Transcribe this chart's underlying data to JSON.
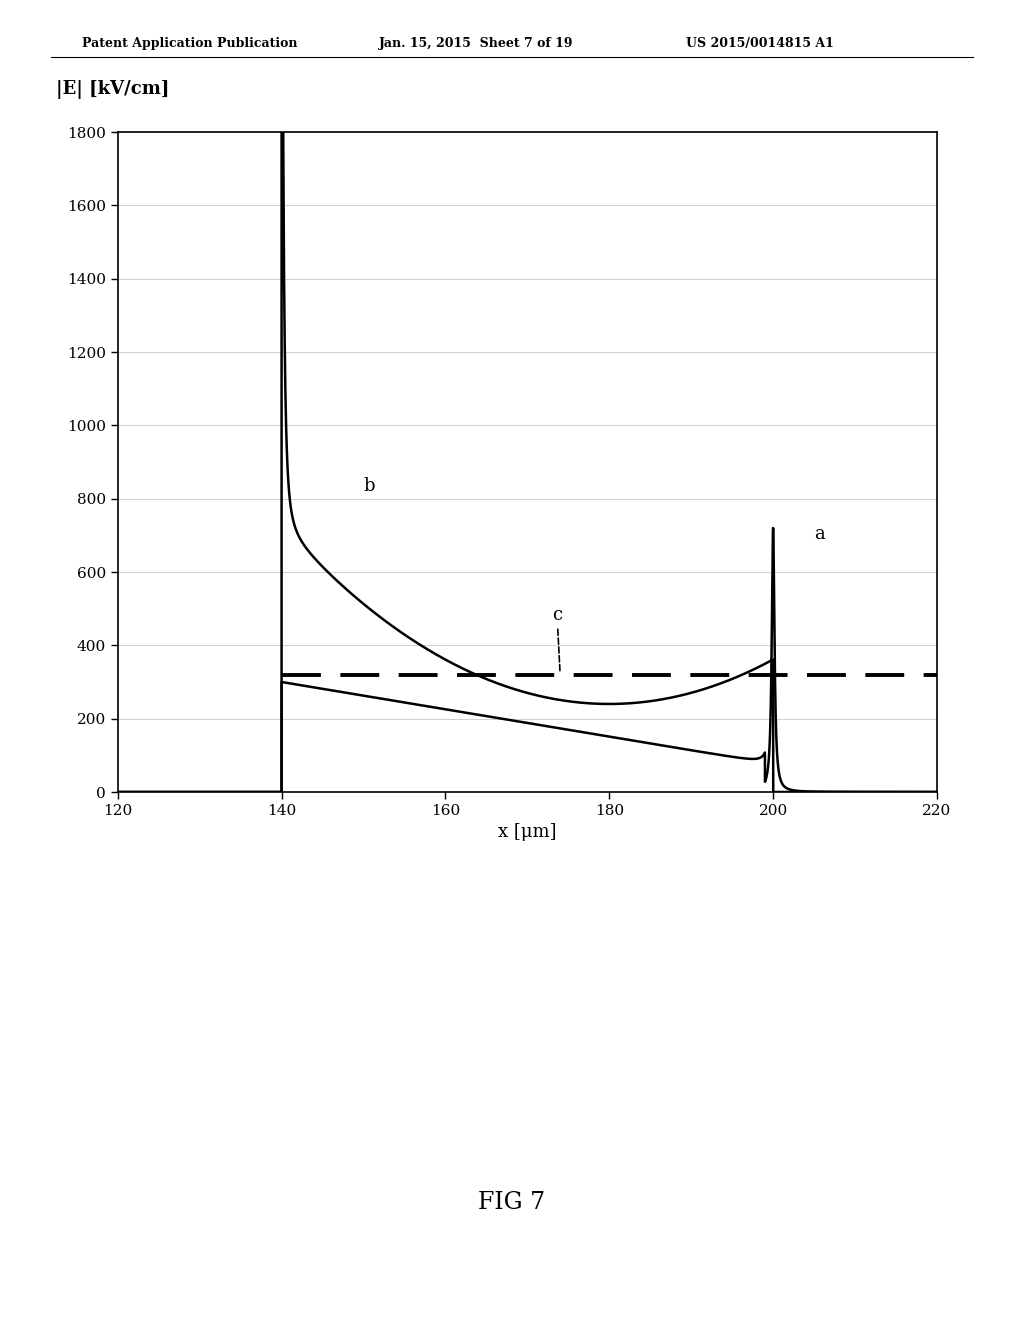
{
  "title": "",
  "ylabel": "|E| [kV/cm]",
  "xlabel": "x [μm]",
  "xlim": [
    120,
    220
  ],
  "ylim": [
    0,
    1800
  ],
  "xticks": [
    120,
    140,
    160,
    180,
    200,
    220
  ],
  "yticks": [
    0,
    200,
    400,
    600,
    800,
    1000,
    1200,
    1400,
    1600,
    1800
  ],
  "dashed_level": 320,
  "label_a": "a",
  "label_b": "b",
  "label_c": "c",
  "fig_label": "FIG 7",
  "header_left": "Patent Application Publication",
  "header_center": "Jan. 15, 2015  Sheet 7 of 19",
  "header_right": "US 2015/0014815 A1",
  "bg_color": "#ffffff",
  "line_color": "#000000",
  "grid_color": "#bbbbbb"
}
